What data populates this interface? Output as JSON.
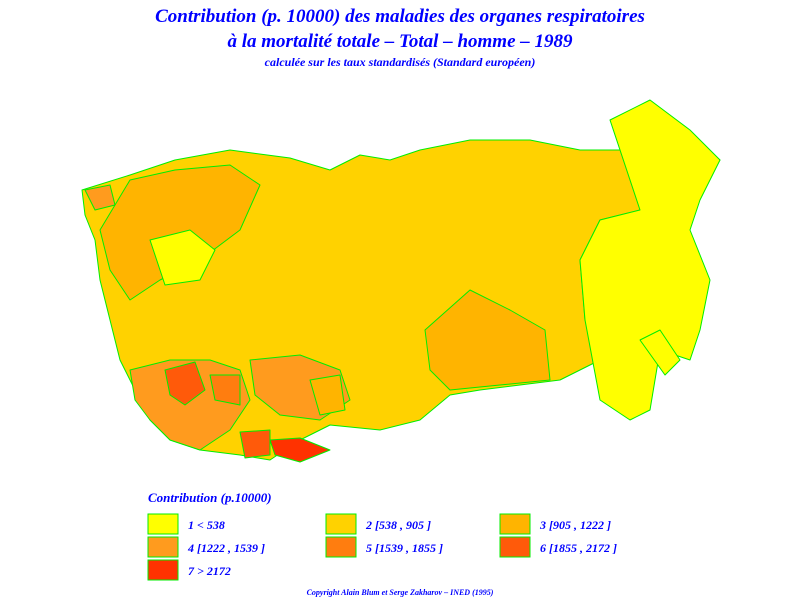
{
  "header": {
    "title_lines": [
      "Contribution (p. 10000) des maladies des organes respiratoires",
      "à la mortalité totale  –  Total  –  homme  –  1989"
    ],
    "subtitle": "calculée sur les taux standardisés (Standard européen)"
  },
  "legend": {
    "title": "Contribution  (p.10000)",
    "items": [
      {
        "label": "1  <  538",
        "color": "#ffff00"
      },
      {
        "label": "2  [538 , 905 ]",
        "color": "#ffd200"
      },
      {
        "label": "3  [905 , 1222 ]",
        "color": "#ffb400"
      },
      {
        "label": "4  [1222 , 1539 ]",
        "color": "#ff9b1e"
      },
      {
        "label": "5  [1539 , 1855 ]",
        "color": "#ff7d0f"
      },
      {
        "label": "6  [1855 , 2172 ]",
        "color": "#ff5a0a"
      },
      {
        "label": "7  >  2172",
        "color": "#ff3200"
      }
    ]
  },
  "footer": {
    "copyright": "Copyright  Alain  Blum  et  Serge  Zakharov  –  INED (1995)"
  }
}
